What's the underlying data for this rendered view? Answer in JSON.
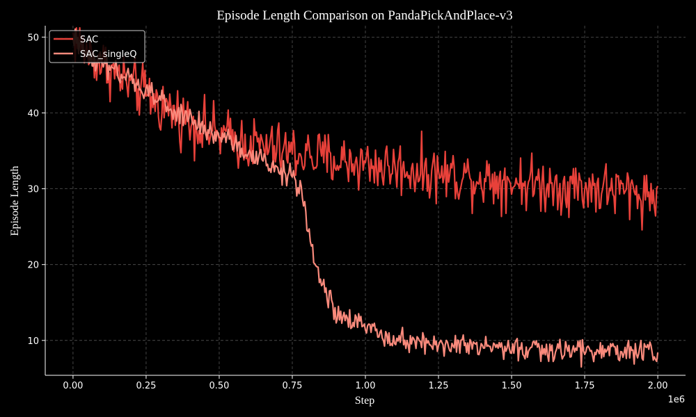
{
  "chart_data": {
    "type": "line",
    "title": "Episode Length Comparison on PandaPickAndPlace-v3",
    "xlabel": "Step",
    "ylabel": "Episode Length",
    "x_offset_label": "1e6",
    "xlim": [
      -0.095,
      2.095
    ],
    "ylim": [
      5.4,
      51.5
    ],
    "xticks": [
      0.0,
      0.25,
      0.5,
      0.75,
      1.0,
      1.25,
      1.5,
      1.75,
      2.0
    ],
    "xtick_labels": [
      "0.00",
      "0.25",
      "0.50",
      "0.75",
      "1.00",
      "1.25",
      "1.50",
      "1.75",
      "2.00"
    ],
    "yticks": [
      10,
      20,
      30,
      40,
      50
    ],
    "ytick_labels": [
      "10",
      "20",
      "30",
      "40",
      "50"
    ],
    "grid": true,
    "legend_position": "upper-left",
    "background_color": "#000000",
    "series": [
      {
        "name": "SAC",
        "color": "#e8413a",
        "x": [
          0.0,
          0.05,
          0.1,
          0.15,
          0.2,
          0.25,
          0.3,
          0.35,
          0.4,
          0.45,
          0.5,
          0.55,
          0.6,
          0.65,
          0.7,
          0.75,
          0.8,
          0.85,
          0.9,
          0.95,
          1.0,
          1.05,
          1.1,
          1.15,
          1.2,
          1.25,
          1.3,
          1.35,
          1.4,
          1.45,
          1.5,
          1.55,
          1.6,
          1.65,
          1.7,
          1.75,
          1.8,
          1.85,
          1.9,
          1.95,
          2.0
        ],
        "values": [
          50.0,
          48.0,
          46.5,
          45.0,
          43.5,
          42.5,
          41.0,
          40.0,
          38.8,
          38.0,
          37.0,
          36.5,
          36.0,
          35.5,
          35.0,
          34.8,
          34.5,
          34.0,
          33.8,
          33.5,
          33.3,
          33.0,
          32.8,
          32.5,
          32.3,
          32.0,
          31.8,
          31.6,
          31.4,
          31.2,
          31.0,
          30.8,
          30.6,
          30.5,
          30.3,
          30.2,
          30.0,
          29.8,
          29.6,
          29.3,
          29.0
        ],
        "noise": 1.8
      },
      {
        "name": "SAC_singleQ",
        "color": "#f98a7c",
        "x": [
          0.0,
          0.05,
          0.1,
          0.15,
          0.2,
          0.25,
          0.3,
          0.35,
          0.4,
          0.45,
          0.5,
          0.55,
          0.6,
          0.65,
          0.7,
          0.75,
          0.78,
          0.8,
          0.82,
          0.85,
          0.88,
          0.9,
          0.95,
          1.0,
          1.05,
          1.1,
          1.15,
          1.2,
          1.25,
          1.3,
          1.35,
          1.4,
          1.45,
          1.5,
          1.55,
          1.6,
          1.65,
          1.7,
          1.75,
          1.8,
          1.85,
          1.9,
          1.95,
          2.0
        ],
        "values": [
          49.5,
          48.0,
          46.5,
          45.0,
          44.0,
          43.0,
          41.5,
          40.0,
          39.0,
          38.0,
          37.0,
          36.0,
          34.5,
          33.5,
          32.5,
          31.5,
          30.0,
          25.0,
          21.5,
          18.0,
          15.0,
          13.5,
          12.5,
          11.8,
          11.0,
          10.5,
          10.0,
          9.8,
          9.5,
          9.3,
          9.2,
          9.0,
          9.0,
          8.9,
          8.8,
          8.7,
          8.7,
          8.6,
          8.6,
          8.6,
          8.5,
          8.5,
          8.5,
          8.5
        ],
        "noise": 0.8
      }
    ]
  }
}
